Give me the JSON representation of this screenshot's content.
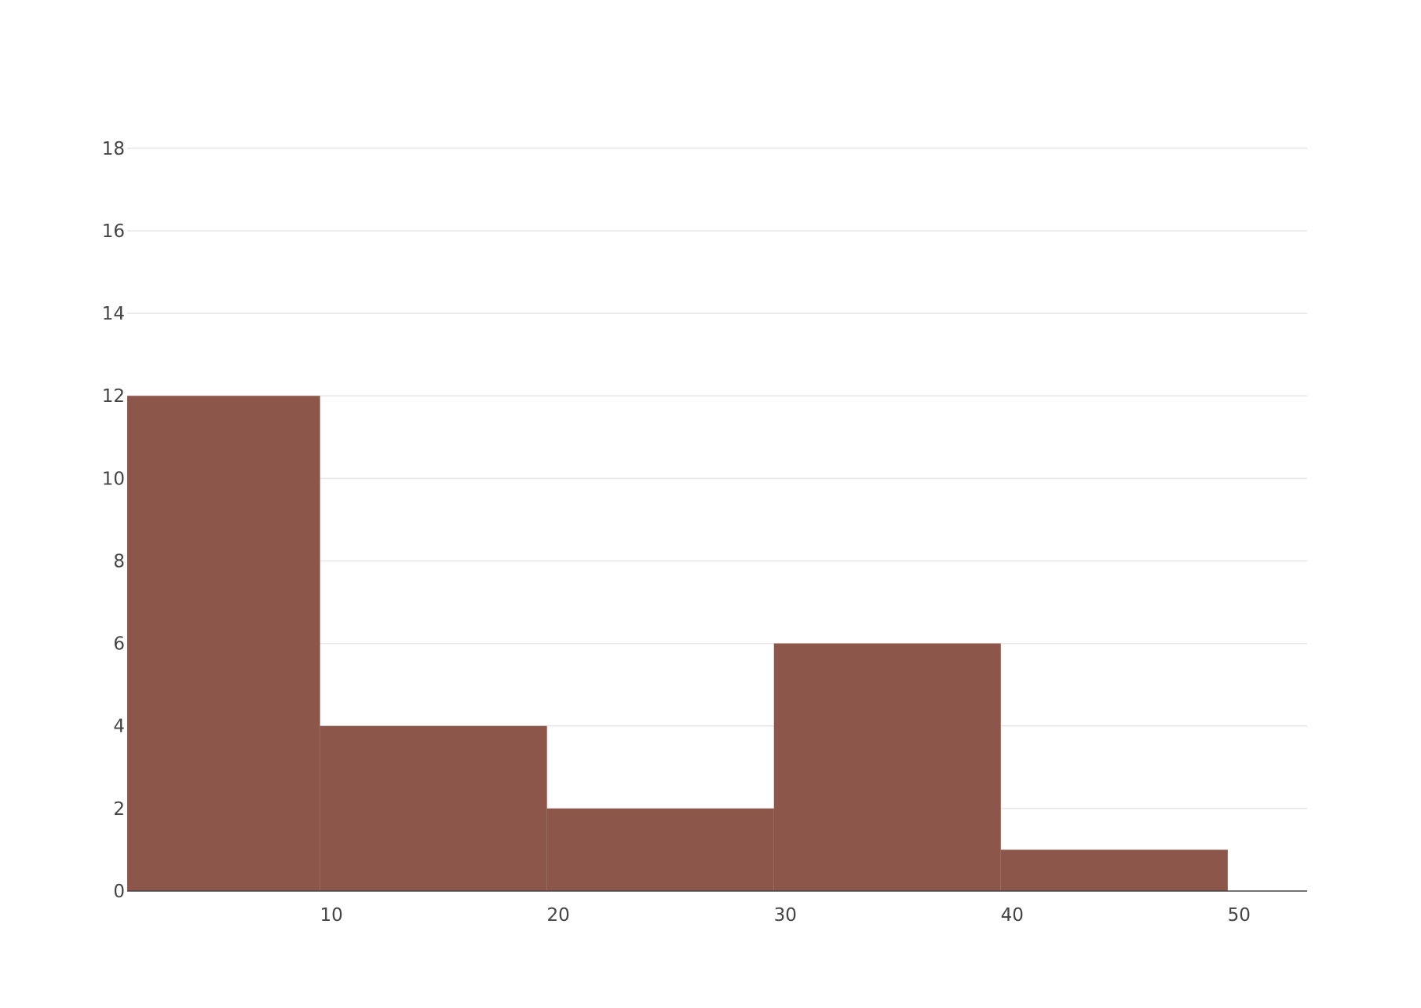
{
  "chart_data": {
    "type": "bar",
    "subtype": "histogram",
    "bins": [
      {
        "x0": 1,
        "x1": 9.5,
        "count": 12
      },
      {
        "x0": 9.5,
        "x1": 19.5,
        "count": 4
      },
      {
        "x0": 19.5,
        "x1": 29.5,
        "count": 2
      },
      {
        "x0": 29.5,
        "x1": 39.5,
        "count": 6
      },
      {
        "x0": 39.5,
        "x1": 49.5,
        "count": 1
      }
    ],
    "xlim": [
      1,
      53
    ],
    "ylim": [
      0,
      19.5
    ],
    "x_ticks": [
      10,
      20,
      30,
      40,
      50
    ],
    "x_tick_labels": [
      "10",
      "20",
      "30",
      "40",
      "50"
    ],
    "y_ticks": [
      0,
      2,
      4,
      6,
      8,
      10,
      12,
      14,
      16,
      18
    ],
    "y_tick_labels": [
      "0",
      "2",
      "4",
      "6",
      "8",
      "10",
      "12",
      "14",
      "16",
      "18"
    ],
    "grid": true,
    "colors": {
      "bar": "#8c564b",
      "grid": "#e6e6e6",
      "axis": "#444444",
      "text": "#444444"
    }
  }
}
